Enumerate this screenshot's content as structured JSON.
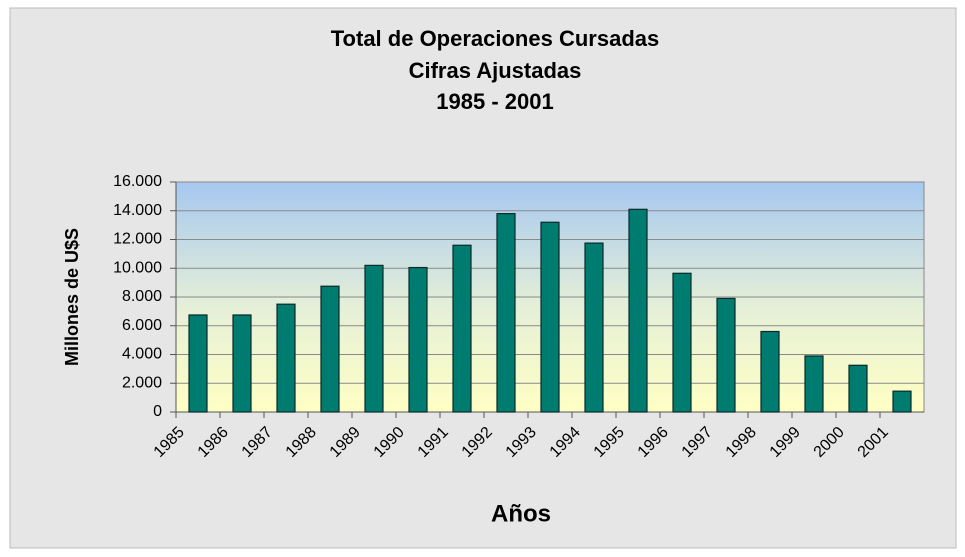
{
  "chart_data": {
    "type": "bar",
    "title": "Total de Operaciones Cursadas",
    "subtitle": "Cifras Ajustadas",
    "period": "1985 - 2001",
    "xlabel": "Años",
    "ylabel": "Millones de U$S",
    "categories": [
      "1985",
      "1986",
      "1987",
      "1988",
      "1989",
      "1990",
      "1991",
      "1992",
      "1993",
      "1994",
      "1995",
      "1996",
      "1997",
      "1998",
      "1999",
      "2000",
      "2001"
    ],
    "values": [
      6750,
      6750,
      7500,
      8750,
      10200,
      10050,
      11600,
      13800,
      13200,
      11750,
      14100,
      9650,
      7900,
      5600,
      3900,
      3250,
      1450
    ],
    "color": "#007b70",
    "ylim": [
      0,
      16000
    ],
    "yticks": [
      0,
      {
        "value": 2000,
        "label": "2.000"
      },
      {
        "value": 4000,
        "label": "4.000"
      },
      {
        "value": 6000,
        "label": "6.000"
      },
      {
        "value": 8000,
        "label": "8.000"
      },
      {
        "value": 10000,
        "label": "10.000"
      },
      {
        "value": 12000,
        "label": "12.000"
      },
      {
        "value": 14000,
        "label": "14.000"
      },
      {
        "value": 16000,
        "label": "16.000"
      }
    ],
    "grid": true
  }
}
